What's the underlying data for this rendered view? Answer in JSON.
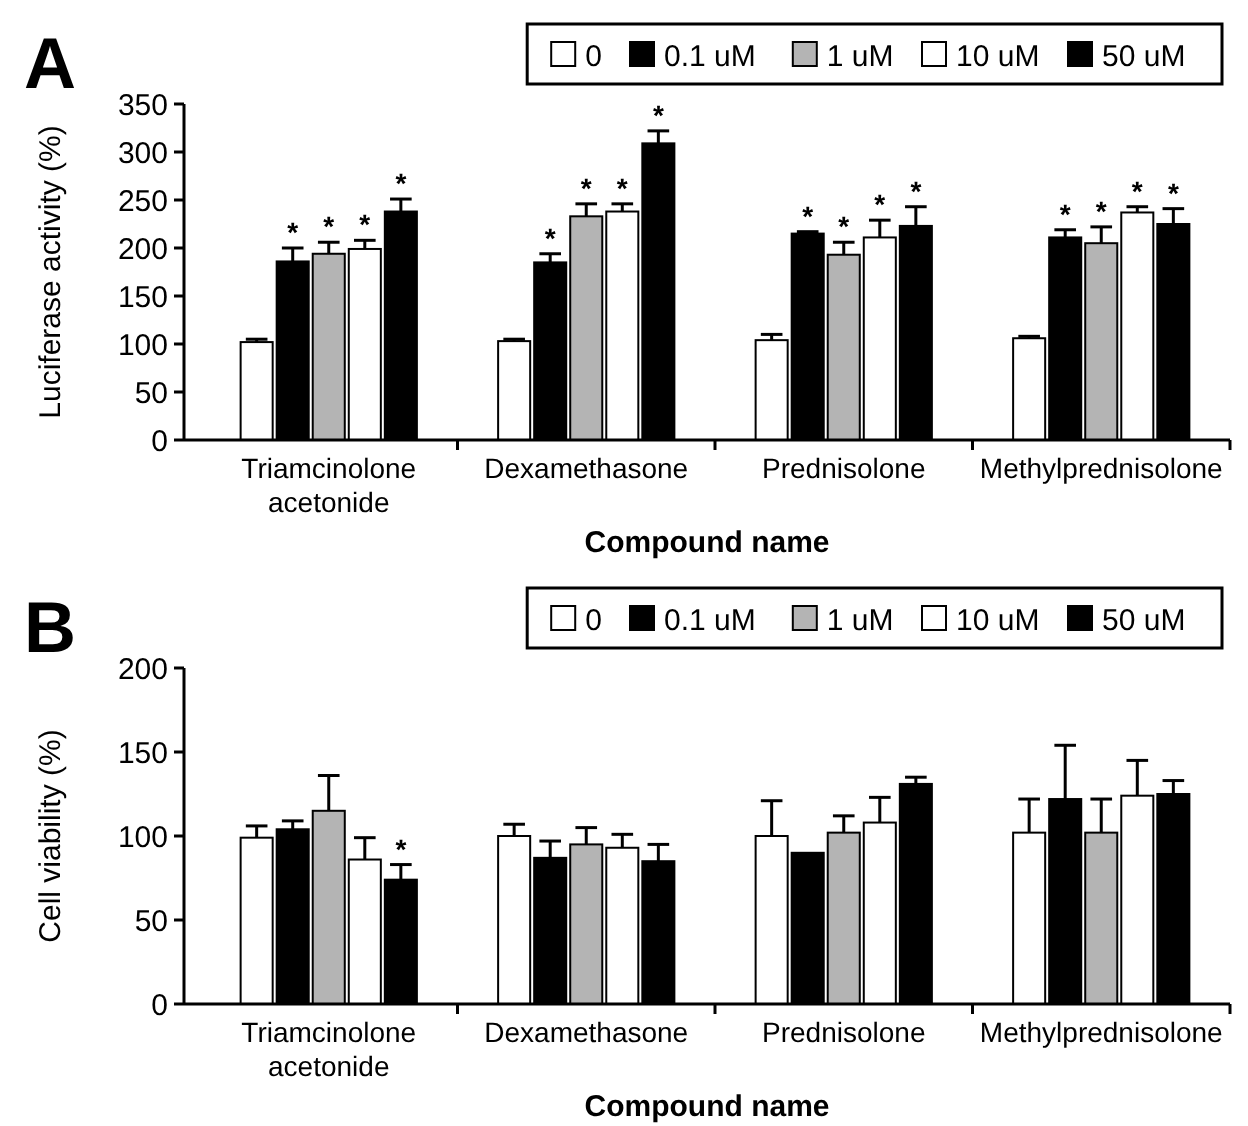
{
  "chart_data": [
    {
      "type": "bar",
      "title": "A",
      "xlabel": "Compound name",
      "ylabel": "Luciferase activity (%)",
      "categories": [
        "Triamcinolone acetonide",
        "Dexamethasone",
        "Prednisolone",
        "Methylprednisolone"
      ],
      "ylim": [
        0,
        350
      ],
      "yticks": [
        0,
        50,
        100,
        150,
        200,
        250,
        300,
        350
      ],
      "legend": "top right",
      "series": [
        {
          "name": "0",
          "color": "#ffffff",
          "values": [
            102,
            103,
            104,
            106
          ],
          "errors": [
            3,
            2,
            6,
            2
          ]
        },
        {
          "name": "0.1 uM",
          "color": "#000000",
          "values": [
            186,
            185,
            215,
            211
          ],
          "errors": [
            14,
            9,
            2,
            8
          ],
          "value_labels": [
            "*",
            "*",
            "*",
            "*"
          ]
        },
        {
          "name": "1 uM",
          "color": "#b4b4b4",
          "values": [
            194,
            233,
            193,
            205
          ],
          "errors": [
            12,
            13,
            13,
            17
          ],
          "value_labels": [
            "*",
            "*",
            "*",
            "*"
          ]
        },
        {
          "name": "10 uM",
          "color": "#ffffff",
          "values": [
            199,
            238,
            211,
            237
          ],
          "errors": [
            9,
            8,
            18,
            6
          ],
          "value_labels": [
            "*",
            "*",
            "*",
            "*"
          ]
        },
        {
          "name": "50 uM",
          "color": "#000000",
          "values": [
            238,
            309,
            223,
            225
          ],
          "errors": [
            13,
            13,
            20,
            16
          ],
          "value_labels": [
            "*",
            "*",
            "*",
            "*"
          ]
        }
      ]
    },
    {
      "type": "bar",
      "title": "B",
      "xlabel": "Compound name",
      "ylabel": "Cell viability (%)",
      "categories": [
        "Triamcinolone acetonide",
        "Dexamethasone",
        "Prednisolone",
        "Methylprednisolone"
      ],
      "ylim": [
        0,
        200
      ],
      "yticks": [
        0,
        50,
        100,
        150,
        200
      ],
      "legend": "top right",
      "series": [
        {
          "name": "0",
          "color": "#ffffff",
          "values": [
            99,
            100,
            100,
            102
          ],
          "errors": [
            7,
            7,
            21,
            20
          ]
        },
        {
          "name": "0.1 uM",
          "color": "#000000",
          "values": [
            104,
            87,
            90,
            122
          ],
          "errors": [
            5,
            10,
            null,
            32
          ]
        },
        {
          "name": "1 uM",
          "color": "#b4b4b4",
          "values": [
            115,
            95,
            102,
            102
          ],
          "errors": [
            21,
            10,
            10,
            20
          ]
        },
        {
          "name": "10 uM",
          "color": "#ffffff",
          "values": [
            86,
            93,
            108,
            124
          ],
          "errors": [
            13,
            8,
            15,
            21
          ]
        },
        {
          "name": "50 uM",
          "color": "#000000",
          "values": [
            74,
            85,
            131,
            125
          ],
          "errors": [
            9,
            10,
            4,
            8
          ],
          "value_labels": [
            "*",
            null,
            null,
            null
          ]
        }
      ]
    }
  ]
}
